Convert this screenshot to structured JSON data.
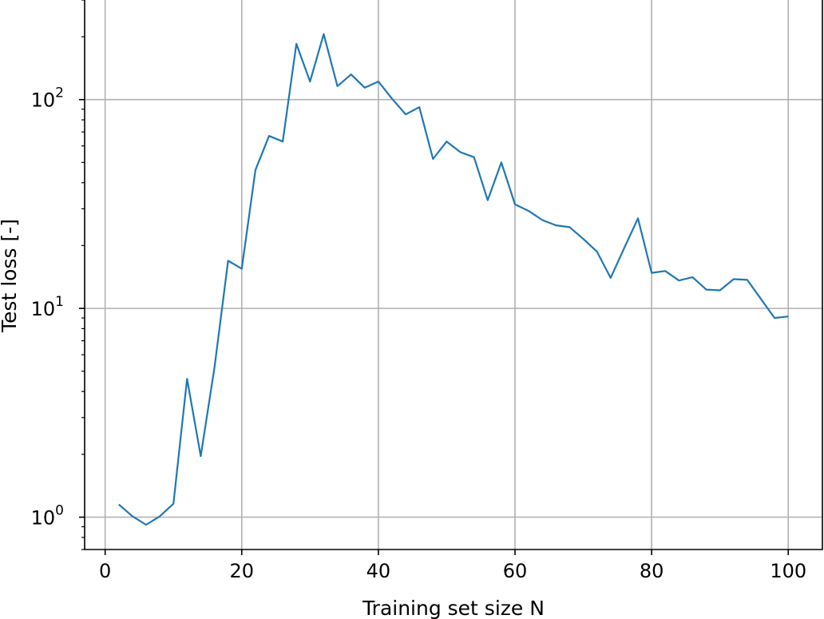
{
  "chart_data": {
    "type": "line",
    "title": "",
    "xlabel": "Training set size N",
    "ylabel": "Test loss [-]",
    "xlim": [
      -3,
      105
    ],
    "ylim": [
      0.7,
      300
    ],
    "yscale": "log",
    "grid": true,
    "line_color": "#1f77b4",
    "x_ticks": [
      0,
      20,
      40,
      60,
      80,
      100
    ],
    "y_ticks": [
      {
        "value": 1,
        "base": "10",
        "exp": "0"
      },
      {
        "value": 10,
        "base": "10",
        "exp": "1"
      },
      {
        "value": 100,
        "base": "10",
        "exp": "2"
      }
    ],
    "series": [
      {
        "x": [
          2,
          4,
          6,
          8,
          10,
          12,
          14,
          16,
          18,
          20,
          22,
          24,
          26,
          28,
          30,
          32,
          34,
          36,
          38,
          40,
          42,
          44,
          46,
          48,
          50,
          52,
          54,
          56,
          58,
          60,
          62,
          64,
          66,
          68,
          70,
          72,
          74,
          76,
          78,
          80,
          82,
          84,
          86,
          88,
          90,
          92,
          94,
          96,
          98,
          100
        ],
        "y": [
          1.15,
          1.01,
          0.92,
          1.01,
          1.16,
          4.6,
          1.96,
          5.2,
          16.9,
          15.5,
          46,
          67,
          63,
          185,
          122,
          206,
          116,
          132,
          114,
          122,
          101,
          85,
          92,
          52,
          63,
          56,
          53,
          33,
          50,
          31.5,
          29.3,
          26.5,
          25,
          24.5,
          21.5,
          18.7,
          14,
          19.5,
          27,
          14.8,
          15.1,
          13.6,
          14.1,
          12.3,
          12.2,
          13.8,
          13.7,
          11.1,
          9,
          9.15
        ]
      }
    ]
  }
}
